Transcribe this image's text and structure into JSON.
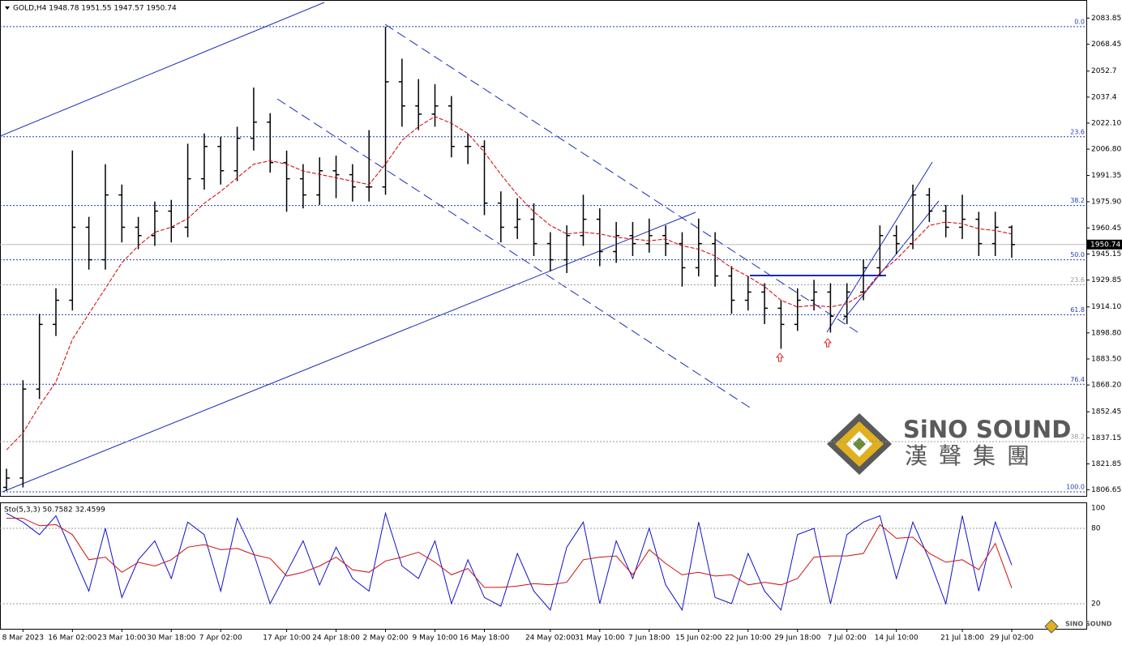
{
  "header": {
    "symbol_line": "GOLD,H4  1948.78 1951.55 1947.57 1950.74"
  },
  "logo": {
    "brand": "SiNO SOUND",
    "brand_cn": "漢聲集團",
    "small": "SINO SOUND"
  },
  "chart_data": [
    {
      "type": "ohlc",
      "color": "#000000",
      "categories": [
        null,
        "8 Mar 2023",
        null,
        null,
        "16 Mar 02:00",
        null,
        null,
        "23 Mar 10:00",
        null,
        null,
        "30 Mar 18:00",
        null,
        null,
        "7 Apr 02:00",
        null,
        null,
        null,
        "17 Apr 10:00",
        null,
        null,
        "24 Apr 18:00",
        null,
        null,
        "2 May 02:00",
        null,
        null,
        "9 May 10:00",
        null,
        null,
        "16 May 18:00",
        null,
        null,
        null,
        "24 May 02:00",
        null,
        null,
        "31 May 10:00",
        null,
        null,
        "7 Jun 18:00",
        null,
        null,
        "15 Jun 02:00",
        null,
        null,
        "22 Jun 10:00",
        null,
        null,
        "29 Jun 18:00",
        null,
        null,
        "7 Jul 02:00",
        null,
        null,
        "14 Jul 10:00",
        null,
        null,
        null,
        "21 Jul 18:00",
        null,
        null,
        "29 Jul 02:00"
      ],
      "open": [
        1808,
        1813.5,
        1865.8,
        1903.8,
        1918,
        1960.9,
        1941.8,
        1979.9,
        1960.9,
        1956,
        1970.4,
        1960.9,
        1989.4,
        2008.4,
        1994.1,
        2013.2,
        2022.7,
        1998.9,
        1989.4,
        1979.9,
        1994.1,
        1991.8,
        1984.6,
        1984.6,
        2046.4,
        2032.2,
        2027.4,
        2032.2,
        2008.4,
        2008.4,
        1975.1,
        1960.9,
        1965.6,
        1951.3,
        1941.8,
        1956,
        1965.6,
        1946.6,
        1956,
        1951.3,
        1956,
        1951.3,
        1937.1,
        1951.3,
        1932.3,
        1918,
        1922.8,
        1913.3,
        1903.8,
        1918,
        1922.8,
        1908.6,
        1922.8,
        1937.1,
        1956,
        1951.3,
        1979.9,
        1970.4,
        1960.9,
        1965.6,
        1951.3,
        1960.9
      ],
      "high": [
        1819,
        1871,
        1910,
        1925,
        2006,
        1967,
        1998,
        1986,
        1967,
        1976,
        1977,
        2010,
        2016,
        2014,
        2020,
        2043,
        2028,
        2006,
        1998,
        2002,
        2003,
        1998,
        2018,
        2078.8,
        2060,
        2048,
        2045,
        2038,
        2016,
        2012,
        1982,
        1978,
        1975,
        1958,
        1962,
        1980,
        1972,
        1964,
        1964,
        1966,
        1962,
        1958,
        1966,
        1958,
        1938,
        1932,
        1928,
        1918,
        1925,
        1930,
        1928,
        1928,
        1942,
        1962,
        1962,
        1986,
        1984,
        1974,
        1980,
        1970,
        1970,
        1962
      ],
      "low": [
        1806,
        1808,
        1860,
        1897,
        1912,
        1936,
        1936,
        1952,
        1948,
        1950,
        1952,
        1955,
        1983,
        1986,
        1988,
        2006,
        1993,
        1970,
        1972,
        1974,
        1978,
        1976,
        1976,
        1980,
        2020,
        2018,
        2020,
        2002,
        1998,
        1968,
        1952,
        1954,
        1944,
        1935,
        1934,
        1950,
        1938,
        1940,
        1944,
        1946,
        1944,
        1926,
        1932,
        1926,
        1910,
        1912,
        1904,
        1889.5,
        1900,
        1912,
        1899,
        1904,
        1918,
        1932,
        1945,
        1948,
        1964,
        1955,
        1954,
        1944,
        1944,
        1943
      ],
      "close": [
        1813.5,
        1865.8,
        1903.8,
        1918,
        1960.9,
        1941.8,
        1979.9,
        1960.9,
        1956,
        1970.4,
        1960.9,
        1989.4,
        2008.4,
        1994.1,
        2013.2,
        2022.7,
        1998.9,
        1989.4,
        1979.9,
        1994.1,
        1991.8,
        1984.6,
        1984.6,
        2046.4,
        2032.2,
        2027.4,
        2032.2,
        2008.4,
        2008.4,
        1975.1,
        1960.9,
        1965.6,
        1951.3,
        1941.8,
        1956,
        1965.6,
        1946.6,
        1956,
        1951.3,
        1956,
        1951.3,
        1937.1,
        1951.3,
        1932.3,
        1918,
        1922.8,
        1913.3,
        1903.8,
        1918,
        1922.8,
        1908.6,
        1922.8,
        1937.1,
        1956,
        1951.3,
        1979.9,
        1970.4,
        1960.9,
        1965.6,
        1951.3,
        1960.9,
        1950.74
      ],
      "ma": {
        "color": "#cc0000",
        "values": [
          1830,
          1840,
          1856,
          1870,
          1895,
          1910,
          1925,
          1940,
          1950,
          1958,
          1961,
          1966,
          1975,
          1982,
          1990,
          1998,
          2000,
          1998,
          1994,
          1992,
          1990,
          1988,
          1986,
          1998,
          2012,
          2020,
          2026,
          2022,
          2016,
          2005,
          1992,
          1980,
          1970,
          1962,
          1957,
          1958,
          1957,
          1955,
          1954,
          1953,
          1954,
          1950,
          1948,
          1944,
          1937,
          1932,
          1926,
          1918,
          1914,
          1915,
          1914,
          1916,
          1922,
          1934,
          1942,
          1952,
          1962,
          1964,
          1963,
          1960,
          1959,
          1957
        ]
      },
      "last_price": 1950.74,
      "ylim": [
        1803,
        2094
      ],
      "yticks": [
        2083.85,
        2068.45,
        2052.7,
        2037.4,
        {
          "value": 2022.1,
          "label": "2022.10"
        },
        {
          "value": 2006.8,
          "label": "2006.80"
        },
        1991.35,
        {
          "value": 1975.9,
          "label": "1975.90"
        },
        1960.45,
        1945.15,
        1929.85,
        {
          "value": 1914.1,
          "label": "1914.10"
        },
        {
          "value": 1898.8,
          "label": "1898.80"
        },
        {
          "value": 1883.5,
          "label": "1883.50"
        },
        {
          "value": 1868.2,
          "label": "1868.20"
        },
        1852.45,
        1837.15,
        1821.85,
        1806.65
      ],
      "fib_levels": [
        {
          "label": "0.0",
          "price": 2078.8,
          "color": "#1f3fbf"
        },
        {
          "label": "23.6",
          "price": 2014.1,
          "color": "#1f3fbf"
        },
        {
          "label": "38.2",
          "price": 1973.7,
          "color": "#1f3fbf"
        },
        {
          "label": "50.0",
          "price": 1941.8,
          "color": "#1f3fbf"
        },
        {
          "label": "23.6",
          "price": 1927.1,
          "color": "#999999"
        },
        {
          "label": "61.8",
          "price": 1909.5,
          "color": "#1f3fbf"
        },
        {
          "label": "76.4",
          "price": 1868.6,
          "color": "#1f3fbf"
        },
        {
          "label": "38.2",
          "price": 1834.9,
          "color": "#999999"
        },
        {
          "label": "100.0",
          "price": 1805.4,
          "color": "#1f3fbf"
        }
      ]
    },
    {
      "type": "line",
      "title": "Sto(5,3,3) 50.7582 32.4599",
      "series": [
        {
          "color": "#1010cc",
          "values": [
            92,
            85,
            75,
            90,
            60,
            30,
            80,
            25,
            55,
            70,
            40,
            85,
            75,
            30,
            88,
            60,
            20,
            45,
            70,
            35,
            65,
            40,
            30,
            92,
            50,
            40,
            70,
            20,
            55,
            25,
            18,
            60,
            30,
            15,
            65,
            85,
            20,
            70,
            40,
            80,
            35,
            15,
            85,
            25,
            20,
            60,
            30,
            15,
            75,
            80,
            20,
            75,
            85,
            90,
            40,
            85,
            55,
            20,
            90,
            30,
            85,
            50.7582
          ]
        },
        {
          "color": "#cc1010",
          "values": [
            88,
            88,
            82,
            83,
            75,
            55,
            57,
            45,
            53,
            50,
            55,
            65,
            67,
            63,
            64,
            59,
            56,
            42,
            45,
            50,
            57,
            47,
            45,
            54,
            57,
            61,
            53,
            43,
            48,
            33,
            33,
            34,
            36,
            35,
            37,
            55,
            57,
            58,
            43,
            63,
            52,
            43,
            45,
            42,
            43,
            35,
            37,
            35,
            40,
            57,
            58,
            58,
            60,
            83,
            72,
            73,
            60,
            53,
            55,
            47,
            68,
            32.4599
          ]
        }
      ],
      "ylim": [
        0,
        100
      ],
      "yticks": [
        100,
        80,
        20
      ]
    }
  ]
}
